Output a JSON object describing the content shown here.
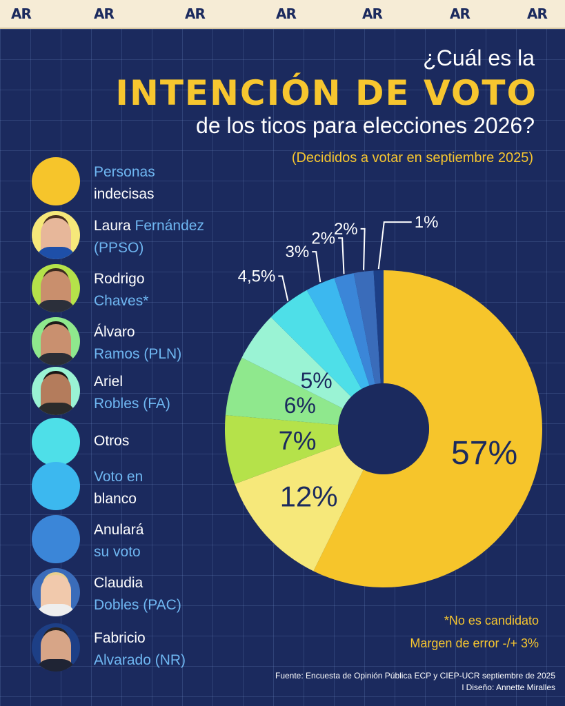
{
  "brand": {
    "logo": "AR"
  },
  "title": {
    "line1": "¿Cuál es la",
    "line2": "INTENCIÓN DE VOTO",
    "line3": "de los ticos para elecciones 2026?",
    "subtitle": "(Decididos a votar en septiembre 2025)"
  },
  "legend": [
    {
      "line1_a": "Personas",
      "line1_b": "",
      "line2_a": "indecisas",
      "line2_b": "",
      "color": "#f6c52b",
      "photo": false
    },
    {
      "line1_a": "Laura",
      "line1_b": " Fernández",
      "line2_a": "",
      "line2_b": "(PPSO)",
      "color": "#f6e87a",
      "photo": true
    },
    {
      "line1_a": "Rodrigo",
      "line1_b": "",
      "line2_a": "",
      "line2_b": "Chaves*",
      "color": "#b5e24a",
      "photo": true
    },
    {
      "line1_a": "Álvaro",
      "line1_b": "",
      "line2_a": "",
      "line2_b": "Ramos (PLN)",
      "color": "#8fe88d",
      "photo": true
    },
    {
      "line1_a": "Ariel",
      "line1_b": "",
      "line2_a": "",
      "line2_b": "Robles (FA)",
      "color": "#9af3d4",
      "photo": true
    },
    {
      "line1_a": "Otros",
      "line1_b": "",
      "line2_a": "",
      "line2_b": "",
      "color": "#4edfe8",
      "photo": false
    },
    {
      "line1_a": "",
      "line1_b": "Voto en",
      "line2_a": "blanco",
      "line2_b": "",
      "color": "#3cb8ef",
      "photo": false
    },
    {
      "line1_a": "Anulará",
      "line1_b": "",
      "line2_a": "",
      "line2_b": "su voto",
      "color": "#3b86d8",
      "photo": false
    },
    {
      "line1_a": "Claudia",
      "line1_b": "",
      "line2_a": "",
      "line2_b": "Dobles (PAC)",
      "color": "#3a6cba",
      "photo": true
    },
    {
      "line1_a": "Fabricio",
      "line1_b": "",
      "line2_a": "",
      "line2_b": "Alvarado (NR)",
      "color": "#1d3f86",
      "photo": true
    }
  ],
  "chart_data": {
    "type": "pie",
    "style": "donut",
    "title": "¿Cuál es la INTENCIÓN DE VOTO de los ticos para elecciones 2026?",
    "categories": [
      "Personas indecisas",
      "Laura Fernández (PPSO)",
      "Rodrigo Chaves*",
      "Álvaro Ramos (PLN)",
      "Ariel Robles (FA)",
      "Otros",
      "Voto en blanco",
      "Anulará su voto",
      "Claudia Dobles (PAC)",
      "Fabricio Alvarado (NR)"
    ],
    "values": [
      57,
      12,
      7,
      6,
      5,
      4.5,
      3,
      2,
      2,
      1
    ],
    "labels": [
      "57%",
      "12%",
      "7%",
      "6%",
      "5%",
      "4,5%",
      "3%",
      "2%",
      "2%",
      "1%"
    ],
    "colors": [
      "#f6c52b",
      "#f6e87a",
      "#b5e24a",
      "#8fe88d",
      "#9af3d4",
      "#4edfe8",
      "#3cb8ef",
      "#3b86d8",
      "#3a6cba",
      "#1d3f86"
    ]
  },
  "notes": {
    "candidate": "*No es candidato",
    "margin": "Margen de error -/+ 3%"
  },
  "source": {
    "line1": "Fuente: Encuesta de Opinión Pública ECP y CIEP-UCR septiembre de 2025",
    "line2": "l Diseño: Annette Miralles"
  }
}
